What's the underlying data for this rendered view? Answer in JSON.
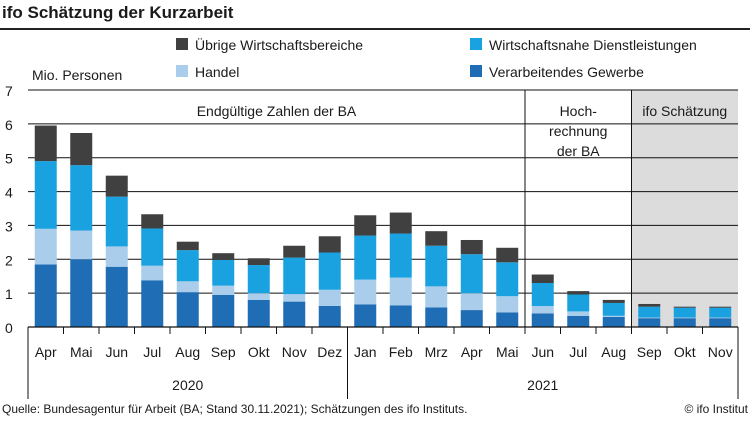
{
  "title": "ifo Schätzung der Kurzarbeit",
  "source": "Quelle: Bundesagentur für Arbeit (BA; Stand 30.11.2021); Schätzungen des ifo Instituts.",
  "copyright": "© ifo Institut",
  "chart_data": {
    "type": "bar",
    "stacked": true,
    "ylabel": "Mio. Personen",
    "ylim": [
      0,
      7
    ],
    "yticks": [
      0,
      1,
      2,
      3,
      4,
      5,
      6,
      7
    ],
    "grid": true,
    "legend_position": "top",
    "categories": [
      "Apr",
      "Mai",
      "Jun",
      "Jul",
      "Aug",
      "Sep",
      "Okt",
      "Nov",
      "Dez",
      "Jan",
      "Feb",
      "Mrz",
      "Apr",
      "Mai",
      "Jun",
      "Jul",
      "Aug",
      "Sep",
      "Okt",
      "Nov"
    ],
    "years": [
      {
        "label": "2020",
        "from": 0,
        "to": 8
      },
      {
        "label": "2021",
        "from": 9,
        "to": 19
      }
    ],
    "series": [
      {
        "name": "Verarbeitendes Gewerbe",
        "color": "#1f6db5",
        "values": [
          1.85,
          2.0,
          1.78,
          1.38,
          1.03,
          0.95,
          0.8,
          0.75,
          0.62,
          0.67,
          0.64,
          0.58,
          0.5,
          0.43,
          0.4,
          0.33,
          0.3,
          0.26,
          0.26,
          0.26
        ]
      },
      {
        "name": "Handel",
        "color": "#a9cdeb",
        "values": [
          1.05,
          0.85,
          0.6,
          0.43,
          0.32,
          0.27,
          0.2,
          0.22,
          0.48,
          0.73,
          0.82,
          0.62,
          0.5,
          0.48,
          0.22,
          0.13,
          0.03,
          0.02,
          0.02,
          0.02
        ]
      },
      {
        "name": "Wirtschaftsnahe Dienstleistungen",
        "color": "#1aa2e0",
        "values": [
          2.0,
          1.93,
          1.47,
          1.1,
          0.92,
          0.76,
          0.83,
          1.08,
          1.1,
          1.3,
          1.3,
          1.2,
          1.15,
          1.0,
          0.68,
          0.5,
          0.38,
          0.32,
          0.29,
          0.29
        ]
      },
      {
        "name": "Übrige Wirtschaftsbereiche",
        "color": "#404040",
        "values": [
          1.05,
          0.95,
          0.62,
          0.42,
          0.25,
          0.2,
          0.2,
          0.35,
          0.48,
          0.6,
          0.62,
          0.43,
          0.42,
          0.43,
          0.25,
          0.1,
          0.09,
          0.08,
          0.03,
          0.03
        ]
      }
    ],
    "regions": [
      {
        "label": "Endgültige Zahlen der BA",
        "from": 0,
        "to": 13
      },
      {
        "label": "Hoch-\nrechnung\nder BA",
        "from": 14,
        "to": 16
      },
      {
        "label": "ifo Schätzung",
        "from": 17,
        "to": 19,
        "shaded": true,
        "color": "#dcdcdc"
      }
    ]
  }
}
